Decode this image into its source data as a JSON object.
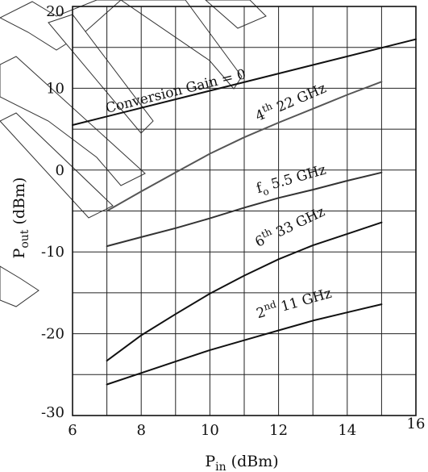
{
  "chart_data": {
    "type": "line",
    "title": "",
    "xlabel": {
      "main": "P",
      "sub": "in",
      "unit": " (dBm)"
    },
    "ylabel": {
      "main": "P",
      "sub": "out",
      "unit": " (dBm)"
    },
    "xlim": [
      6,
      16
    ],
    "ylim": [
      -30,
      20
    ],
    "x_ticks": [
      6,
      8,
      10,
      12,
      14,
      16
    ],
    "y_ticks": [
      -30,
      -20,
      -10,
      0,
      10,
      20
    ],
    "x_tick_labels": [
      "6",
      "8",
      "10",
      "12",
      "14",
      "16"
    ],
    "y_tick_labels": [
      "-30",
      "-20",
      "-10",
      "0",
      "10",
      "20"
    ],
    "x_grid": [
      6,
      7,
      8,
      9,
      10,
      11,
      12,
      13,
      14,
      15,
      16
    ],
    "y_grid": [
      -30,
      -25,
      -20,
      -15,
      -10,
      -5,
      0,
      5,
      10,
      15,
      20
    ],
    "grid": true,
    "legend": "none",
    "series": [
      {
        "id": "conversion-gain",
        "label": {
          "pre": "Conversion Gain = 0",
          "sup": "",
          "post": ""
        },
        "color": "#111111",
        "x": [
          6,
          16
        ],
        "y": [
          5.5,
          16
        ]
      },
      {
        "id": "harmonic-4th",
        "label": {
          "pre": "4",
          "sup": "th",
          "post": " 22 GHz"
        },
        "color": "#555555",
        "x": [
          7,
          8,
          9,
          10,
          11,
          12,
          13,
          14,
          15
        ],
        "y": [
          -5,
          -2.6,
          -0.3,
          2,
          4,
          5.8,
          7.5,
          9.2,
          10.8
        ]
      },
      {
        "id": "fundamental",
        "label": {
          "pre": "f",
          "sub": "o",
          "post": " 5.5 GHz"
        },
        "color": "#333333",
        "x": [
          7,
          8,
          9,
          10,
          11,
          12,
          13,
          14,
          15
        ],
        "y": [
          -9.3,
          -8.2,
          -7.1,
          -5.9,
          -4.6,
          -3.4,
          -2.4,
          -1.3,
          -0.3
        ]
      },
      {
        "id": "harmonic-6th",
        "label": {
          "pre": "6",
          "sup": "th",
          "post": " 33 GHz"
        },
        "color": "#111111",
        "x": [
          7,
          8,
          9,
          10,
          11,
          12,
          13,
          14,
          15
        ],
        "y": [
          -23.3,
          -20.2,
          -17.6,
          -15.1,
          -12.9,
          -10.9,
          -9.2,
          -7.8,
          -6.4
        ]
      },
      {
        "id": "harmonic-2nd",
        "label": {
          "pre": "2",
          "sup": "nd",
          "post": " 11 GHz"
        },
        "color": "#111111",
        "x": [
          7,
          8,
          9,
          10,
          11,
          12,
          13,
          14,
          15
        ],
        "y": [
          -26.2,
          -24.8,
          -23.4,
          -22,
          -20.8,
          -19.6,
          -18.4,
          -17.4,
          -16.4
        ]
      }
    ]
  }
}
